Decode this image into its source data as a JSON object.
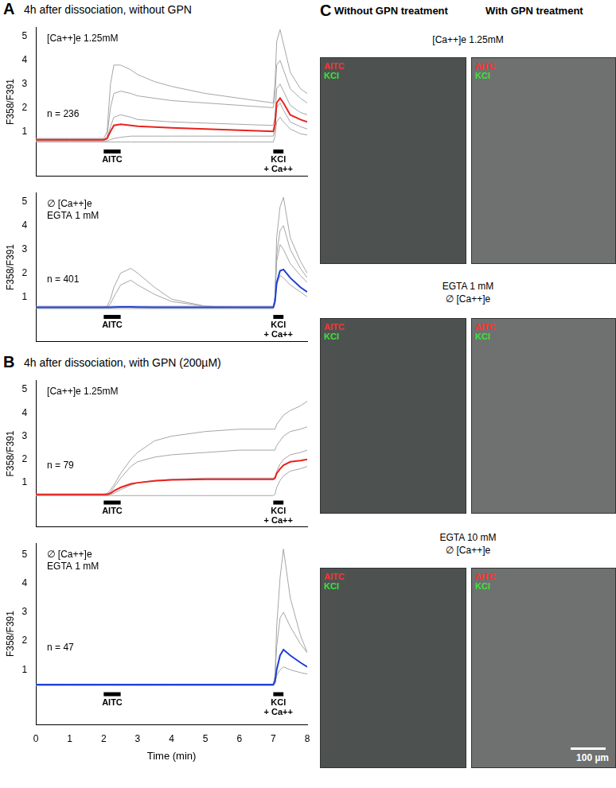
{
  "panels": [
    {
      "label": "A",
      "title": "4h after dissociation, without GPN"
    },
    {
      "label": "B",
      "title": "4h after dissociation, with GPN (200µM)"
    }
  ],
  "chart_data": [
    {
      "type": "line",
      "panel": "A",
      "conditions": [
        "[Ca++]e 1.25mM"
      ],
      "n_label": "n = 236",
      "y_label": "F358/F391",
      "xlim": [
        0,
        8
      ],
      "xticks": [
        0,
        1,
        2,
        3,
        4,
        5,
        6,
        7,
        8
      ],
      "ylim": [
        -0.9,
        5.4
      ],
      "yticks": [
        1,
        2,
        3,
        4,
        5
      ],
      "grid": false,
      "tick_labels": "y",
      "stimuli": [
        {
          "label": [
            "AITC"
          ],
          "x": [
            2,
            2.5
          ],
          "y": 0.15
        },
        {
          "label": [
            "KCl",
            "+ Ca++"
          ],
          "x": [
            7,
            7.3
          ],
          "y": 0.15
        }
      ],
      "x": [
        0,
        1,
        2,
        2.1,
        2.2,
        2.3,
        2.5,
        2.8,
        3,
        3.5,
        4,
        5,
        6,
        7,
        7.05,
        7.1,
        7.2,
        7.3,
        7.5,
        7.8,
        8
      ],
      "series": [
        {
          "color": "#a6a6a6",
          "values": [
            0.7,
            0.7,
            0.7,
            1.0,
            3.0,
            3.8,
            3.8,
            3.6,
            3.4,
            3.1,
            2.9,
            2.6,
            2.4,
            2.2,
            3.0,
            4.8,
            5.3,
            4.7,
            3.5,
            2.8,
            2.6
          ]
        },
        {
          "color": "#a6a6a6",
          "values": [
            0.65,
            0.65,
            0.65,
            0.8,
            2.0,
            2.6,
            2.7,
            2.6,
            2.5,
            2.4,
            2.3,
            2.2,
            2.1,
            2.0,
            2.5,
            3.8,
            4.0,
            3.6,
            2.8,
            2.4,
            2.2
          ]
        },
        {
          "color": "#a6a6a6",
          "values": [
            0.6,
            0.6,
            0.6,
            0.7,
            1.2,
            1.6,
            1.7,
            1.6,
            1.5,
            1.45,
            1.4,
            1.35,
            1.3,
            1.25,
            1.6,
            2.8,
            3.0,
            2.7,
            2.1,
            1.8,
            1.7
          ]
        },
        {
          "color": "#a6a6a6",
          "values": [
            0.6,
            0.6,
            0.6,
            0.6,
            0.65,
            0.7,
            0.75,
            0.8,
            0.8,
            0.8,
            0.8,
            0.8,
            0.8,
            0.8,
            1.1,
            2.0,
            2.2,
            1.9,
            1.4,
            1.2,
            1.1
          ]
        },
        {
          "color": "#a6a6a6",
          "values": [
            0.55,
            0.55,
            0.55,
            0.55,
            0.55,
            0.55,
            0.55,
            0.55,
            0.55,
            0.55,
            0.55,
            0.55,
            0.55,
            0.55,
            0.8,
            1.4,
            1.6,
            1.4,
            1.1,
            0.9,
            0.85
          ]
        },
        {
          "color": "#e8231f",
          "values": [
            0.65,
            0.65,
            0.65,
            0.7,
            1.0,
            1.25,
            1.3,
            1.25,
            1.22,
            1.18,
            1.15,
            1.1,
            1.05,
            1.0,
            1.3,
            2.2,
            2.4,
            2.2,
            1.7,
            1.5,
            1.4
          ]
        }
      ]
    },
    {
      "type": "line",
      "panel": "A",
      "conditions": [
        "∅ [Ca++]e",
        "EGTA 1 mM"
      ],
      "n_label": "n = 401",
      "y_label": "F358/F391",
      "xlim": [
        0,
        8
      ],
      "xticks": [
        0,
        1,
        2,
        3,
        4,
        5,
        6,
        7,
        8
      ],
      "ylim": [
        -0.9,
        5.4
      ],
      "yticks": [
        1,
        2,
        3,
        4,
        5
      ],
      "grid": false,
      "tick_labels": "y",
      "stimuli": [
        {
          "label": [
            "AITC"
          ],
          "x": [
            2,
            2.5
          ],
          "y": 0.15
        },
        {
          "label": [
            "KCl",
            "+ Ca++"
          ],
          "x": [
            7,
            7.3
          ],
          "y": 0.15
        }
      ],
      "x": [
        0,
        1,
        2,
        2.1,
        2.2,
        2.3,
        2.5,
        2.8,
        3,
        3.5,
        4,
        5,
        6,
        7,
        7.05,
        7.1,
        7.2,
        7.3,
        7.5,
        7.8,
        8
      ],
      "series": [
        {
          "color": "#a6a6a6",
          "values": [
            0.55,
            0.55,
            0.55,
            0.6,
            0.9,
            1.4,
            2.0,
            2.2,
            2.0,
            1.4,
            0.9,
            0.6,
            0.55,
            0.55,
            1.0,
            3.5,
            4.8,
            5.2,
            3.5,
            2.5,
            2.0
          ]
        },
        {
          "color": "#a6a6a6",
          "values": [
            0.55,
            0.55,
            0.55,
            0.55,
            0.7,
            1.0,
            1.5,
            1.7,
            1.5,
            1.1,
            0.8,
            0.6,
            0.55,
            0.55,
            0.9,
            2.5,
            3.2,
            3.0,
            2.4,
            1.9,
            1.6
          ]
        },
        {
          "color": "#a6a6a6",
          "values": [
            0.5,
            0.5,
            0.5,
            0.5,
            0.5,
            0.5,
            0.5,
            0.5,
            0.5,
            0.5,
            0.5,
            0.5,
            0.5,
            0.5,
            0.7,
            1.5,
            1.9,
            1.8,
            1.5,
            1.2,
            1.0
          ]
        },
        {
          "color": "#a6a6a6",
          "values": [
            0.6,
            0.6,
            0.6,
            0.6,
            0.6,
            0.6,
            0.6,
            0.6,
            0.6,
            0.6,
            0.6,
            0.6,
            0.6,
            0.6,
            1.0,
            2.8,
            3.8,
            4.0,
            3.0,
            2.2,
            1.8
          ]
        },
        {
          "color": "#1f3fd6",
          "values": [
            0.55,
            0.55,
            0.55,
            0.55,
            0.55,
            0.56,
            0.57,
            0.57,
            0.56,
            0.55,
            0.55,
            0.55,
            0.55,
            0.55,
            0.8,
            1.6,
            2.1,
            2.15,
            1.8,
            1.4,
            1.2
          ]
        }
      ]
    },
    {
      "type": "line",
      "panel": "B",
      "conditions": [
        "[Ca++]e 1.25mM"
      ],
      "n_label": "n = 79",
      "y_label": "F358/F391",
      "xlim": [
        0,
        8
      ],
      "xticks": [
        0,
        1,
        2,
        3,
        4,
        5,
        6,
        7,
        8
      ],
      "ylim": [
        -0.9,
        5.4
      ],
      "yticks": [
        1,
        2,
        3,
        4,
        5
      ],
      "grid": false,
      "tick_labels": "y",
      "stimuli": [
        {
          "label": [
            "AITC"
          ],
          "x": [
            2,
            2.5
          ],
          "y": 0.15
        },
        {
          "label": [
            "KCl",
            "+ Ca++"
          ],
          "x": [
            7,
            7.3
          ],
          "y": 0.15
        }
      ],
      "x": [
        0,
        1,
        2,
        2.1,
        2.2,
        2.3,
        2.5,
        2.8,
        3,
        3.5,
        4,
        5,
        6,
        7,
        7.05,
        7.1,
        7.2,
        7.3,
        7.5,
        7.8,
        8
      ],
      "series": [
        {
          "color": "#a6a6a6",
          "values": [
            0.5,
            0.5,
            0.5,
            0.55,
            0.7,
            0.9,
            1.4,
            2.0,
            2.3,
            2.8,
            3.0,
            3.2,
            3.3,
            3.3,
            3.3,
            3.5,
            3.7,
            3.9,
            4.1,
            4.3,
            4.5
          ]
        },
        {
          "color": "#a6a6a6",
          "values": [
            0.5,
            0.5,
            0.5,
            0.5,
            0.6,
            0.8,
            1.2,
            1.7,
            1.9,
            2.1,
            2.2,
            2.3,
            2.4,
            2.4,
            2.4,
            2.6,
            2.8,
            3.0,
            3.2,
            3.3,
            3.4
          ]
        },
        {
          "color": "#a6a6a6",
          "values": [
            0.45,
            0.45,
            0.45,
            0.45,
            0.5,
            0.55,
            0.7,
            0.9,
            1.0,
            1.1,
            1.15,
            1.2,
            1.2,
            1.2,
            1.25,
            1.5,
            1.8,
            2.0,
            2.2,
            2.3,
            2.4
          ]
        },
        {
          "color": "#a6a6a6",
          "values": [
            0.45,
            0.45,
            0.45,
            0.45,
            0.45,
            0.45,
            0.45,
            0.45,
            0.45,
            0.45,
            0.45,
            0.45,
            0.45,
            0.45,
            0.5,
            0.8,
            1.1,
            1.3,
            1.5,
            1.6,
            1.7
          ]
        },
        {
          "color": "#e8231f",
          "values": [
            0.5,
            0.5,
            0.5,
            0.5,
            0.55,
            0.65,
            0.8,
            0.95,
            1.0,
            1.08,
            1.12,
            1.15,
            1.15,
            1.15,
            1.2,
            1.4,
            1.6,
            1.75,
            1.9,
            1.95,
            2.0
          ]
        }
      ]
    },
    {
      "type": "line",
      "panel": "B",
      "conditions": [
        "∅ [Ca++]e",
        "EGTA 1 mM"
      ],
      "n_label": "n = 47",
      "y_label": "F358/F391",
      "x_label": "Time (min)",
      "xlim": [
        0,
        8
      ],
      "xticks": [
        0,
        1,
        2,
        3,
        4,
        5,
        6,
        7,
        8
      ],
      "ylim": [
        -0.9,
        5.4
      ],
      "yticks": [
        1,
        2,
        3,
        4,
        5
      ],
      "grid": false,
      "stimuli": [
        {
          "label": [
            "AITC"
          ],
          "x": [
            2,
            2.5
          ],
          "y": 0.15
        },
        {
          "label": [
            "KCl",
            "+ Ca++"
          ],
          "x": [
            7,
            7.3
          ],
          "y": 0.15
        }
      ],
      "x": [
        0,
        1,
        2,
        2.1,
        2.2,
        2.3,
        2.5,
        2.8,
        3,
        3.5,
        4,
        5,
        6,
        7,
        7.05,
        7.1,
        7.2,
        7.3,
        7.5,
        7.8,
        8
      ],
      "series": [
        {
          "color": "#a6a6a6",
          "values": [
            0.5,
            0.5,
            0.5,
            0.5,
            0.5,
            0.5,
            0.5,
            0.5,
            0.5,
            0.5,
            0.5,
            0.5,
            0.5,
            0.5,
            0.8,
            2.5,
            4.2,
            5.2,
            3.5,
            2.2,
            1.6
          ]
        },
        {
          "color": "#a6a6a6",
          "values": [
            0.48,
            0.48,
            0.48,
            0.48,
            0.48,
            0.48,
            0.48,
            0.48,
            0.48,
            0.48,
            0.48,
            0.48,
            0.48,
            0.48,
            0.7,
            1.8,
            2.8,
            3.0,
            2.5,
            1.9,
            1.6
          ]
        },
        {
          "color": "#a6a6a6",
          "values": [
            0.45,
            0.45,
            0.45,
            0.45,
            0.45,
            0.45,
            0.45,
            0.45,
            0.45,
            0.45,
            0.45,
            0.45,
            0.45,
            0.45,
            0.5,
            0.8,
            1.0,
            1.1,
            1.0,
            0.9,
            0.85
          ]
        },
        {
          "color": "#1f3fd6",
          "values": [
            0.48,
            0.48,
            0.48,
            0.48,
            0.48,
            0.48,
            0.48,
            0.48,
            0.48,
            0.48,
            0.48,
            0.48,
            0.48,
            0.48,
            0.6,
            1.0,
            1.5,
            1.7,
            1.5,
            1.25,
            1.1
          ]
        }
      ]
    }
  ],
  "panel_c": {
    "label": "C",
    "columns": [
      "Without GPN treatment",
      "With GPN treatment"
    ],
    "rows": [
      {
        "heading": [
          "[Ca++]e 1.25mM"
        ]
      },
      {
        "heading": [
          "EGTA 1 mM",
          "∅ [Ca++]e"
        ]
      },
      {
        "heading": [
          "EGTA 10 mM",
          "∅ [Ca++]e"
        ]
      }
    ],
    "image_labels": [
      {
        "text": "AITC",
        "color": "#ff3030"
      },
      {
        "text": "KCl",
        "color": "#3ee03e"
      }
    ],
    "scale_bar": "100 µm"
  }
}
